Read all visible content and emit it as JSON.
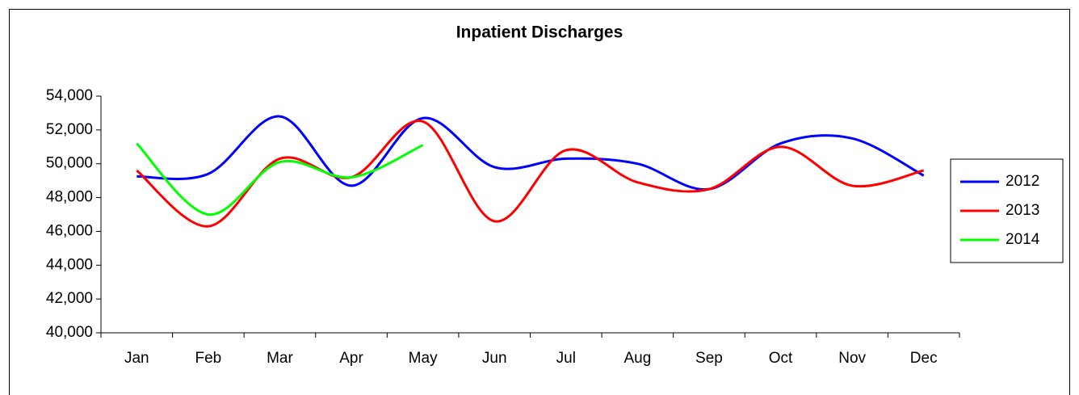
{
  "chart_data": {
    "type": "line",
    "title": "Inpatient Discharges",
    "categories": [
      "Jan",
      "Feb",
      "Mar",
      "Apr",
      "May",
      "Jun",
      "Jul",
      "Aug",
      "Sep",
      "Oct",
      "Nov",
      "Dec"
    ],
    "series": [
      {
        "name": "2012",
        "color": "#0000ff",
        "values": [
          49250,
          49400,
          52800,
          48700,
          52700,
          49800,
          50300,
          50000,
          48500,
          51200,
          51500,
          49300
        ]
      },
      {
        "name": "2013",
        "color": "#ff0000",
        "values": [
          49600,
          46300,
          50300,
          49200,
          52500,
          46600,
          50800,
          48900,
          48500,
          51000,
          48700,
          49600
        ]
      },
      {
        "name": "2014",
        "color": "#00ff00",
        "values": [
          51200,
          47000,
          50100,
          49200,
          51100,
          null,
          null,
          null,
          null,
          null,
          null,
          null
        ]
      }
    ],
    "ylim": [
      40000,
      54000
    ],
    "yticks": [
      {
        "value": 40000,
        "label": "40,000"
      },
      {
        "value": 42000,
        "label": "42,000"
      },
      {
        "value": 44000,
        "label": "44,000"
      },
      {
        "value": 46000,
        "label": "46,000"
      },
      {
        "value": 48000,
        "label": "48,000"
      },
      {
        "value": 50000,
        "label": "50,000"
      },
      {
        "value": 52000,
        "label": "52,000"
      },
      {
        "value": 54000,
        "label": "54,000"
      }
    ],
    "smooth": true,
    "legend": "right"
  }
}
